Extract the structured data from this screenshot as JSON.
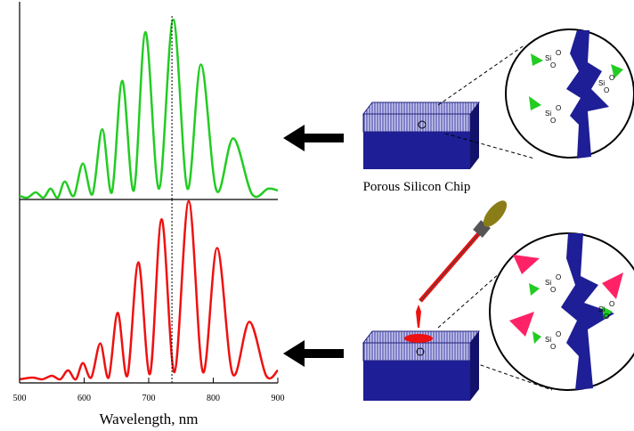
{
  "chart_data": [
    {
      "type": "line",
      "color": "#22cc22",
      "xlim": [
        500,
        900
      ],
      "ylim": [
        0,
        100
      ],
      "marker_x": 736,
      "x": [
        500,
        512,
        525,
        537,
        548,
        559,
        570,
        584,
        598,
        613,
        628,
        643,
        659,
        677,
        695,
        716,
        738,
        760,
        781,
        805,
        831,
        860,
        885,
        900
      ],
      "values": [
        1,
        0,
        3,
        0,
        5,
        0,
        9,
        1,
        19,
        2,
        38,
        3,
        65,
        4,
        92,
        5,
        99,
        5,
        74,
        4,
        33,
        2,
        5,
        4
      ]
    },
    {
      "type": "line",
      "color": "#ee1111",
      "xlim": [
        500,
        900
      ],
      "ylim": [
        0,
        100
      ],
      "marker_x": 736,
      "xticks": [
        500,
        600,
        700,
        800,
        900
      ],
      "x_label": "Wavelength, nm",
      "x": [
        500,
        520,
        535,
        550,
        563,
        575,
        587,
        598,
        611,
        625,
        638,
        652,
        667,
        684,
        702,
        720,
        740,
        762,
        784,
        806,
        830,
        856,
        882,
        900
      ],
      "values": [
        1,
        2,
        1,
        3,
        1,
        6,
        1,
        10,
        2,
        21,
        2,
        38,
        3,
        66,
        4,
        90,
        5,
        100,
        5,
        74,
        4,
        33,
        3,
        6
      ]
    }
  ],
  "diagram": {
    "chip_label": "Porous Silicon Chip",
    "atoms": [
      "Si",
      "O"
    ]
  }
}
